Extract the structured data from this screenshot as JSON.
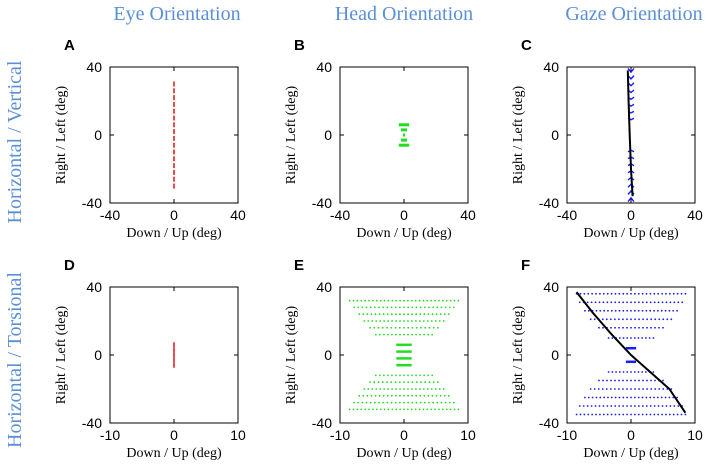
{
  "colors": {
    "title": "#5b8fd6",
    "eye": "#e32020",
    "head": "#22dd22",
    "gaze_markers": "#1a1aff",
    "gaze_line": "#000000"
  },
  "column_titles": [
    "Eye Orientation",
    "Head Orientation",
    "Gaze Orientation"
  ],
  "row_titles": [
    "Horizontal / Vertical",
    "Horizontal / Torsional"
  ],
  "chart_data": [
    {
      "id": "A",
      "type": "scatter",
      "row": 0,
      "col": 0,
      "xlabel": "Down / Up (deg)",
      "ylabel": "Right / Left (deg)",
      "xlim": [
        -40,
        40
      ],
      "ylim": [
        -40,
        40
      ],
      "xticks": [
        "-40",
        "0",
        "40"
      ],
      "yticks": [
        "40",
        "0",
        "-40"
      ],
      "series": [
        {
          "name": "eye",
          "kind": "dashes",
          "color": "eye",
          "points": [
            [
              0,
              30
            ],
            [
              0,
              26
            ],
            [
              0,
              22
            ],
            [
              0,
              18
            ],
            [
              0,
              14
            ],
            [
              0,
              10
            ],
            [
              0,
              6
            ],
            [
              0,
              2
            ],
            [
              0,
              -2
            ],
            [
              0,
              -6
            ],
            [
              0,
              -10
            ],
            [
              0,
              -14
            ],
            [
              0,
              -18
            ],
            [
              0,
              -22
            ],
            [
              0,
              -26
            ],
            [
              0,
              -30
            ]
          ]
        }
      ]
    },
    {
      "id": "B",
      "type": "scatter",
      "row": 0,
      "col": 1,
      "xlabel": "Down / Up (deg)",
      "ylabel": "Right / Left (deg)",
      "xlim": [
        -40,
        40
      ],
      "ylim": [
        -40,
        40
      ],
      "xticks": [
        "-40",
        "0",
        "40"
      ],
      "yticks": [
        "40",
        "0",
        "-40"
      ],
      "series": [
        {
          "name": "head",
          "kind": "hourglass",
          "color": "head",
          "points": [
            [
              0,
              6
            ],
            [
              0,
              3
            ],
            [
              0,
              0
            ],
            [
              0,
              -3
            ],
            [
              0,
              -6
            ]
          ]
        }
      ]
    },
    {
      "id": "C",
      "type": "scatter",
      "row": 0,
      "col": 2,
      "xlabel": "Down / Up (deg)",
      "ylabel": "Right / Left (deg)",
      "xlim": [
        -40,
        40
      ],
      "ylim": [
        -40,
        40
      ],
      "xticks": [
        "-40",
        "0",
        "40"
      ],
      "yticks": [
        "40",
        "0",
        "-40"
      ],
      "series": [
        {
          "name": "gaze",
          "kind": "chevrons",
          "color": "gaze_markers",
          "points": [
            [
              0,
              37
            ],
            [
              0,
              33
            ],
            [
              0,
              29
            ],
            [
              0,
              25
            ],
            [
              0,
              21
            ],
            [
              0,
              17
            ],
            [
              0,
              13
            ],
            [
              0,
              9
            ],
            [
              0,
              -9
            ],
            [
              0,
              -13
            ],
            [
              0,
              -17
            ],
            [
              0,
              -21
            ],
            [
              0,
              -25
            ],
            [
              0,
              -29
            ],
            [
              0,
              -33
            ],
            [
              0,
              -37
            ]
          ]
        },
        {
          "name": "trend",
          "kind": "line",
          "color": "gaze_line",
          "points": [
            [
              -2,
              38
            ],
            [
              -1.5,
              20
            ],
            [
              -0.8,
              0
            ],
            [
              0,
              -20
            ],
            [
              1,
              -36
            ]
          ]
        }
      ]
    },
    {
      "id": "D",
      "type": "scatter",
      "row": 1,
      "col": 0,
      "xlabel": "Down / Up (deg)",
      "ylabel": "Right / Left (deg)",
      "xlim": [
        -10,
        10
      ],
      "ylim": [
        -40,
        40
      ],
      "xticks": [
        "-10",
        "0",
        "10"
      ],
      "yticks": [
        "40",
        "0",
        "-40"
      ],
      "series": [
        {
          "name": "eye",
          "kind": "dashes",
          "color": "eye",
          "points": [
            [
              0,
              6
            ],
            [
              0,
              3
            ],
            [
              0,
              0
            ],
            [
              0,
              -3
            ],
            [
              0,
              -6
            ]
          ]
        }
      ]
    },
    {
      "id": "E",
      "type": "scatter",
      "row": 1,
      "col": 1,
      "xlabel": "Down / Up (deg)",
      "ylabel": "Right / Left (deg)",
      "xlim": [
        -10,
        10
      ],
      "ylim": [
        -40,
        40
      ],
      "xticks": [
        "-10",
        "0",
        "10"
      ],
      "yticks": [
        "40",
        "0",
        "-40"
      ],
      "series": [
        {
          "name": "head",
          "kind": "fan",
          "color": "head",
          "rows": [
            [
              32,
              8.5
            ],
            [
              28,
              7.8
            ],
            [
              24,
              7
            ],
            [
              20,
              6.2
            ],
            [
              16,
              5.3
            ],
            [
              12,
              4.4
            ],
            [
              6,
              1.2
            ],
            [
              2,
              1.2
            ],
            [
              -2,
              1.2
            ],
            [
              -6,
              1.2
            ],
            [
              -12,
              4.4
            ],
            [
              -16,
              5.3
            ],
            [
              -20,
              6.2
            ],
            [
              -24,
              7
            ],
            [
              -28,
              7.8
            ],
            [
              -32,
              8.5
            ]
          ]
        }
      ]
    },
    {
      "id": "F",
      "type": "scatter",
      "row": 1,
      "col": 2,
      "xlabel": "Down / Up (deg)",
      "ylabel": "Right / Left (deg)",
      "xlim": [
        -10,
        10
      ],
      "ylim": [
        -40,
        40
      ],
      "xticks": [
        "-10",
        "0",
        "10"
      ],
      "yticks": [
        "40",
        "0",
        "-40"
      ],
      "series": [
        {
          "name": "gaze",
          "kind": "fan",
          "color": "gaze_markers",
          "rows": [
            [
              36,
              8.5
            ],
            [
              31,
              8
            ],
            [
              26,
              7.2
            ],
            [
              21,
              6.3
            ],
            [
              16,
              5
            ],
            [
              10,
              3.5
            ],
            [
              4,
              0.8
            ],
            [
              -4,
              0.8
            ],
            [
              -10,
              3.5
            ],
            [
              -15,
              5
            ],
            [
              -20,
              6.3
            ],
            [
              -25,
              7.2
            ],
            [
              -30,
              8
            ],
            [
              -35,
              8.5
            ]
          ]
        },
        {
          "name": "trend",
          "kind": "line",
          "color": "gaze_line",
          "points": [
            [
              -8.5,
              37
            ],
            [
              -6,
              25
            ],
            [
              -3,
              12
            ],
            [
              0,
              0
            ],
            [
              3,
              -10
            ],
            [
              6,
              -20
            ],
            [
              8.5,
              -34
            ]
          ]
        }
      ]
    }
  ]
}
